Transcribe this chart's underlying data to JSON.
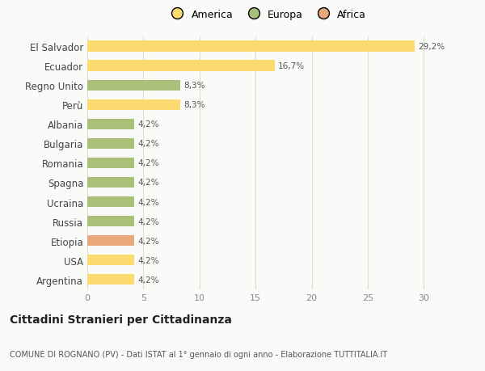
{
  "countries": [
    "El Salvador",
    "Ecuador",
    "Regno Unito",
    "Perù",
    "Albania",
    "Bulgaria",
    "Romania",
    "Spagna",
    "Ucraina",
    "Russia",
    "Etiopia",
    "USA",
    "Argentina"
  ],
  "values": [
    29.2,
    16.7,
    8.3,
    8.3,
    4.2,
    4.2,
    4.2,
    4.2,
    4.2,
    4.2,
    4.2,
    4.2,
    4.2
  ],
  "labels": [
    "29,2%",
    "16,7%",
    "8,3%",
    "8,3%",
    "4,2%",
    "4,2%",
    "4,2%",
    "4,2%",
    "4,2%",
    "4,2%",
    "4,2%",
    "4,2%",
    "4,2%"
  ],
  "categories": [
    "America",
    "Europa",
    "Africa"
  ],
  "bar_colors": [
    "#FBDB6F",
    "#FBDB6F",
    "#A8C07A",
    "#FBDB6F",
    "#A8C07A",
    "#A8C07A",
    "#A8C07A",
    "#A8C07A",
    "#A8C07A",
    "#A8C07A",
    "#E8A87C",
    "#FBDB6F",
    "#FBDB6F"
  ],
  "legend_colors": [
    "#FBDB6F",
    "#A8C07A",
    "#E8A87C"
  ],
  "xlim": [
    0,
    32
  ],
  "xticks": [
    0,
    5,
    10,
    15,
    20,
    25,
    30
  ],
  "title": "Cittadini Stranieri per Cittadinanza",
  "subtitle": "COMUNE DI ROGNANO (PV) - Dati ISTAT al 1° gennaio di ogni anno - Elaborazione TUTTITALIA.IT",
  "background_color": "#FAFAF8",
  "grid_color": "#DDDDCC",
  "bar_height": 0.55
}
